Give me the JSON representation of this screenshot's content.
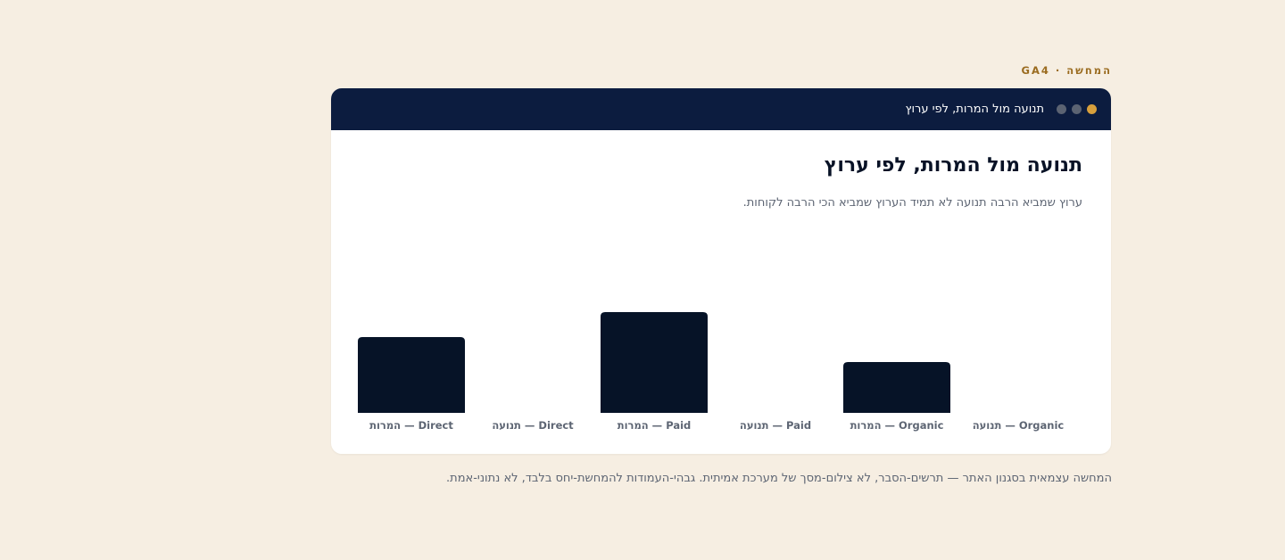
{
  "eyebrow": "המחשה · GA4",
  "window": {
    "title": "תנועה מול המרות, לפי ערוץ",
    "dot_colors": [
      "#d8a03c",
      "#5b6372",
      "#5b6372"
    ]
  },
  "footer_note": "המחשה עצמאית בסגנון האתר — תרשים-הסבר, לא צילום-מסך של מערכת אמיתית. גבהי-העמודות להמחשת-יחס בלבד, לא נתוני-אמת.",
  "colors": {
    "bar": "#061327",
    "page_background": "#f6eee2",
    "titlebar": "#0c1c3f",
    "accent": "#9a6b1f"
  },
  "chart_data": {
    "type": "bar",
    "title": "תנועה מול המרות, לפי ערוץ",
    "subtitle": "ערוץ שמביא הרבה תנועה לא תמיד הערוץ שמביא הכי הרבה לקוחות.",
    "direction": "rtl",
    "categories": [
      "Organic — תנועה",
      "Organic — המרות",
      "Paid — תנועה",
      "Paid — המרות",
      "Direct — תנועה",
      "Direct — המרות"
    ],
    "values": [
      0,
      57,
      0,
      113,
      0,
      85
    ],
    "ylim": [
      0,
      210
    ],
    "grid": false,
    "legend": "none"
  }
}
